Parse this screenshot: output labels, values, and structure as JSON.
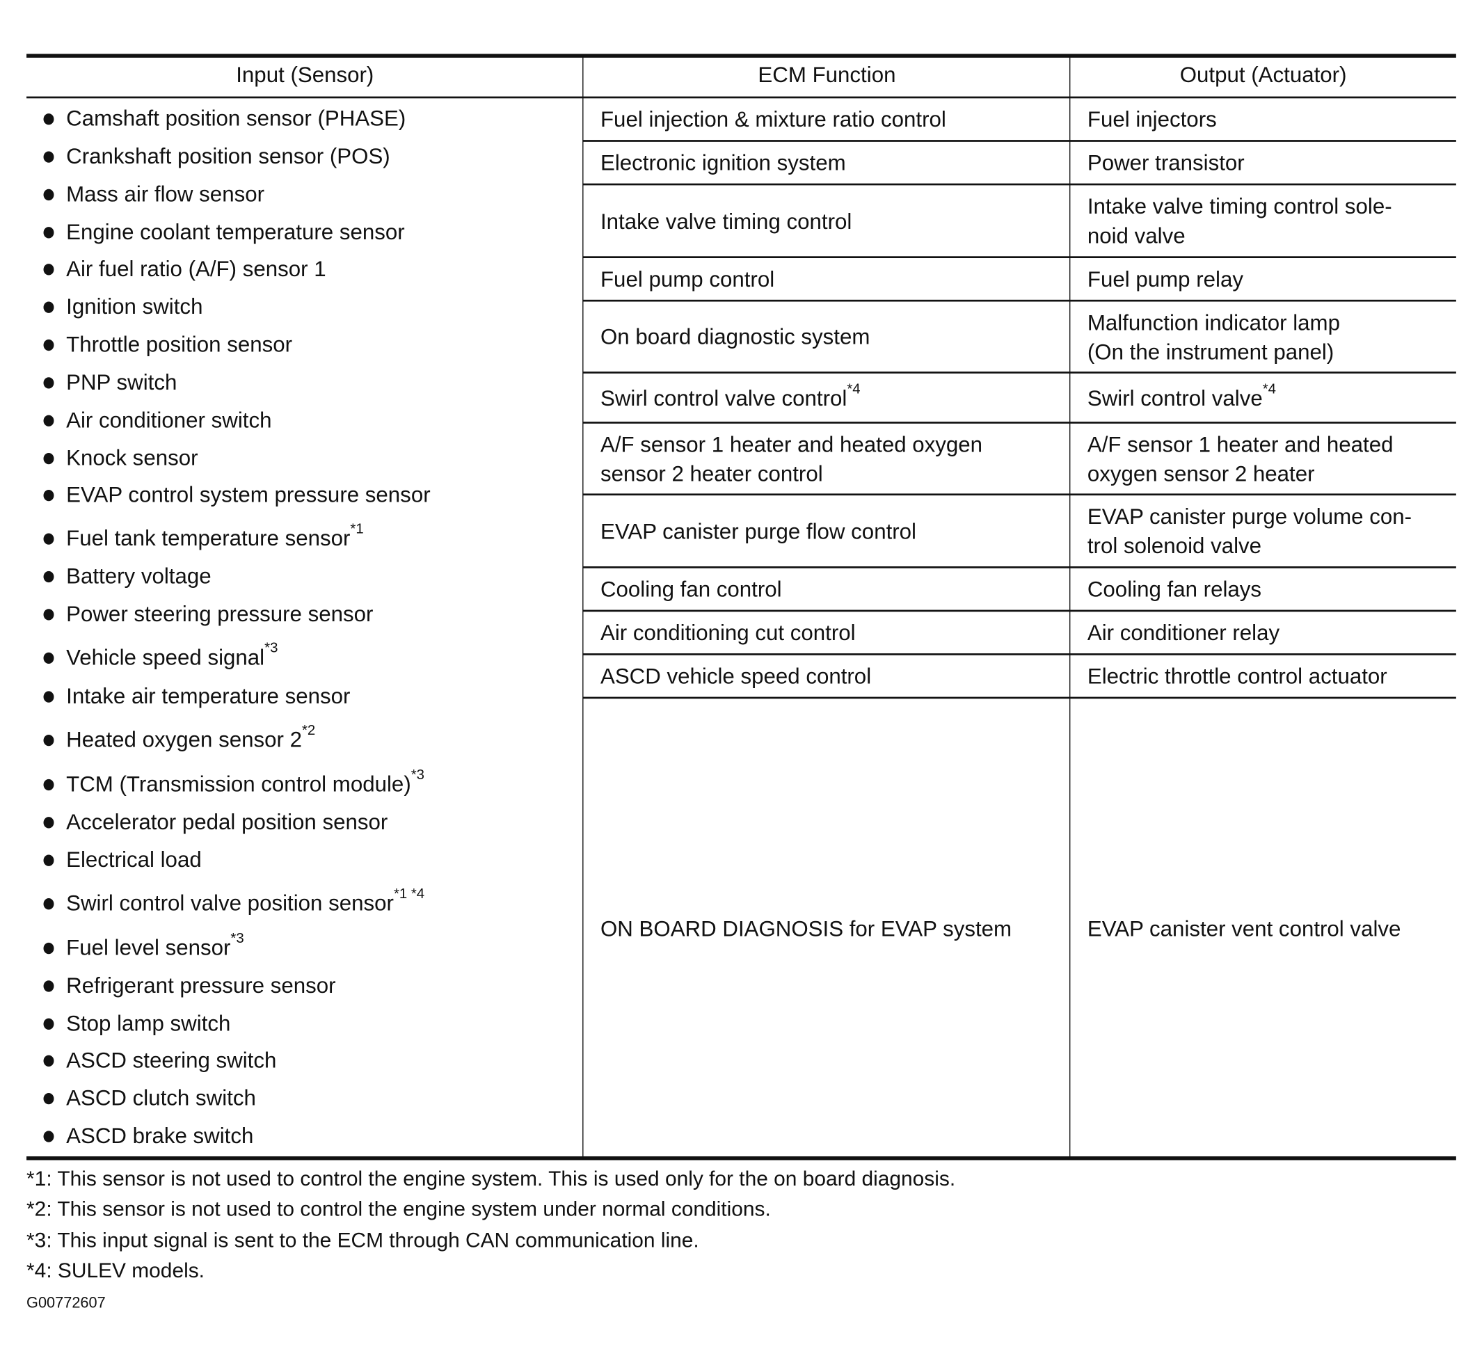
{
  "headers": [
    "Input (Sensor)",
    "ECM Function",
    "Output (Actuator)"
  ],
  "inputs": [
    {
      "text": "Camshaft position sensor (PHASE)",
      "note": ""
    },
    {
      "text": "Crankshaft position sensor (POS)",
      "note": ""
    },
    {
      "text": "Mass air flow sensor",
      "note": ""
    },
    {
      "text": "Engine coolant temperature sensor",
      "note": ""
    },
    {
      "text": "Air fuel ratio (A/F) sensor 1",
      "note": ""
    },
    {
      "text": "Ignition switch",
      "note": ""
    },
    {
      "text": "Throttle position sensor",
      "note": ""
    },
    {
      "text": "PNP switch",
      "note": ""
    },
    {
      "text": "Air conditioner switch",
      "note": ""
    },
    {
      "text": "Knock sensor",
      "note": ""
    },
    {
      "text": "EVAP control system pressure sensor",
      "note": ""
    },
    {
      "text": "Fuel tank temperature sensor",
      "note": "*1"
    },
    {
      "text": "Battery voltage",
      "note": ""
    },
    {
      "text": "Power steering pressure sensor",
      "note": ""
    },
    {
      "text": "Vehicle speed signal",
      "note": "*3"
    },
    {
      "text": "Intake air temperature sensor",
      "note": ""
    },
    {
      "text": "Heated oxygen sensor 2",
      "note": "*2"
    },
    {
      "text": "TCM (Transmission control module)",
      "note": "*3"
    },
    {
      "text": "Accelerator pedal position sensor",
      "note": ""
    },
    {
      "text": "Electrical load",
      "note": ""
    },
    {
      "text": "Swirl control valve position sensor",
      "note": "*1 *4"
    },
    {
      "text": "Fuel level sensor",
      "note": "*3"
    },
    {
      "text": "Refrigerant pressure sensor",
      "note": ""
    },
    {
      "text": "Stop lamp switch",
      "note": ""
    },
    {
      "text": "ASCD steering switch",
      "note": ""
    },
    {
      "text": "ASCD clutch switch",
      "note": ""
    },
    {
      "text": "ASCD brake switch",
      "note": ""
    }
  ],
  "rows": [
    {
      "function": [
        "Fuel injection & mixture ratio control"
      ],
      "function_note": "",
      "output": [
        "Fuel injectors"
      ],
      "output_note": ""
    },
    {
      "function": [
        "Electronic ignition system"
      ],
      "function_note": "",
      "output": [
        "Power transistor"
      ],
      "output_note": ""
    },
    {
      "function": [
        "Intake valve timing control"
      ],
      "function_note": "",
      "output": [
        "Intake valve timing control sole-",
        "noid valve"
      ],
      "output_note": ""
    },
    {
      "function": [
        "Fuel pump control"
      ],
      "function_note": "",
      "output": [
        "Fuel pump relay"
      ],
      "output_note": ""
    },
    {
      "function": [
        "On board diagnostic system"
      ],
      "function_note": "",
      "output": [
        "Malfunction indicator lamp",
        "(On the instrument panel)"
      ],
      "output_note": ""
    },
    {
      "function": [
        "Swirl control valve control"
      ],
      "function_note": "*4",
      "output": [
        "Swirl control valve"
      ],
      "output_note": "*4"
    },
    {
      "function": [
        "A/F sensor 1 heater and heated oxygen",
        "sensor 2 heater control"
      ],
      "function_note": "",
      "output": [
        "A/F sensor 1 heater and heated",
        "oxygen sensor 2 heater"
      ],
      "output_note": ""
    },
    {
      "function": [
        "EVAP canister purge flow control"
      ],
      "function_note": "",
      "output": [
        "EVAP canister purge volume con-",
        "trol solenoid valve"
      ],
      "output_note": ""
    },
    {
      "function": [
        "Cooling fan control"
      ],
      "function_note": "",
      "output": [
        "Cooling fan relays"
      ],
      "output_note": ""
    },
    {
      "function": [
        "Air conditioning cut control"
      ],
      "function_note": "",
      "output": [
        "Air conditioner relay"
      ],
      "output_note": ""
    },
    {
      "function": [
        "ASCD vehicle speed control"
      ],
      "function_note": "",
      "output": [
        "Electric throttle control actuator"
      ],
      "output_note": ""
    },
    {
      "function": [
        "ON BOARD DIAGNOSIS for EVAP system"
      ],
      "function_note": "",
      "output": [
        "EVAP canister vent control valve"
      ],
      "output_note": ""
    }
  ],
  "footnotes": [
    "*1: This sensor is not used to control the engine system. This is used only for the on board diagnosis.",
    "*2: This sensor is not used to control the engine system under normal conditions.",
    "*3: This input signal is sent to the ECM through CAN communication line.",
    "*4: SULEV models."
  ],
  "figure_code": "G00772607"
}
